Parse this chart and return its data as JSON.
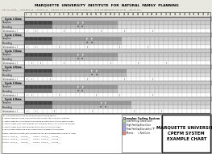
{
  "title": "MARQUETTE  UNIVERSITY  INSTITUTE  FOR  NATURAL  FAMILY  PLANNING",
  "subtitle": "LAST 12 CYCLES___  SHORTEST_23__  LONGEST_40__  EARLIEST DAY OF PEAK IN LAST 6 CYCLES_11__  DATE FOR BEGINNING THIS CHART___June 19, 200__",
  "col_headers": [
    "1",
    "2",
    "3",
    "4",
    "5",
    "6",
    "7",
    "8",
    "9",
    "10",
    "11",
    "12",
    "13",
    "14",
    "15",
    "16",
    "17",
    "18",
    "19",
    "20",
    "21",
    "22",
    "23",
    "24",
    "25",
    "26",
    "27",
    "28",
    "29",
    "30",
    "31",
    "32",
    "33",
    "34",
    "35",
    "36",
    "37",
    "38",
    "39",
    "40"
  ],
  "row_labels_left": [
    "Cycle 1 Date",
    "Charplan",
    "Recording",
    "Intercourse = I",
    "Cycle 2 Date",
    "Charplan",
    "Recording",
    "Intercourse = I",
    "Cycle 3 Date",
    "Charplan",
    "Recording",
    "Intercourse = I",
    "Cycle 4 Date",
    "Charplan",
    "Recording",
    "Intercourse = I",
    "Cycle 5 Date",
    "Charplan",
    "Recording",
    "Intercourse = I",
    "Cycle 6 Date",
    "Charplan",
    "Recording",
    "Intercourse = I"
  ],
  "cycles": [
    {
      "label": "Cycle 1 Date",
      "charplan_dark": [
        1,
        2,
        3,
        4,
        5,
        6
      ],
      "charplan_mid": [
        7,
        8,
        9,
        10,
        11,
        12,
        13,
        14,
        15,
        16,
        17,
        18,
        19,
        20
      ],
      "charplan_light": [
        21,
        22,
        23,
        24,
        25,
        26,
        27,
        28,
        29,
        30,
        31,
        32,
        33,
        34,
        35,
        36,
        37,
        38,
        39,
        40
      ],
      "peak_cols": [
        12,
        13
      ],
      "record_markers": [
        12,
        13
      ],
      "intercourse": [
        1,
        3,
        9,
        17,
        22,
        28
      ]
    },
    {
      "label": "Cycle 2 Date",
      "charplan_dark": [
        1,
        2,
        3,
        4,
        5,
        6
      ],
      "charplan_mid": [
        7,
        8,
        9,
        10,
        11,
        12,
        13,
        14,
        15,
        16,
        17,
        18,
        19,
        20,
        21
      ],
      "charplan_light": [
        22,
        23,
        24,
        25,
        26,
        27,
        28,
        29,
        30,
        31,
        32,
        33,
        34,
        35,
        36,
        37,
        38,
        39,
        40
      ],
      "peak_cols": [
        14,
        15
      ],
      "record_markers": [
        14,
        15
      ],
      "intercourse": [
        1,
        3,
        8,
        14,
        21,
        27
      ]
    },
    {
      "label": "Cycle 3 Date",
      "charplan_dark": [
        1,
        2,
        3,
        4,
        5,
        6
      ],
      "charplan_mid": [
        7,
        8,
        9,
        10,
        11,
        12,
        13,
        14,
        15,
        16,
        17,
        18,
        19,
        20
      ],
      "charplan_light": [
        21,
        22,
        23,
        24,
        25,
        26,
        27,
        28,
        29,
        30,
        31,
        32,
        33,
        34,
        35,
        36,
        37,
        38,
        39,
        40
      ],
      "peak_cols": [
        12,
        13
      ],
      "record_markers": [
        12,
        13
      ],
      "intercourse": [
        2,
        4,
        9,
        19,
        25,
        31
      ]
    },
    {
      "label": "Cycle 4 Date",
      "charplan_dark": [
        1,
        2,
        3,
        4,
        5,
        6
      ],
      "charplan_mid": [
        7,
        8,
        9,
        10,
        11,
        12,
        13,
        14,
        15,
        16,
        17,
        18,
        19,
        20,
        21,
        22
      ],
      "charplan_light": [
        23,
        24,
        25,
        26,
        27,
        28,
        29,
        30,
        31,
        32,
        33,
        34,
        35,
        36,
        37,
        38,
        39,
        40
      ],
      "peak_cols": [
        15,
        16
      ],
      "record_markers": [
        15,
        16
      ],
      "intercourse": [
        1,
        2,
        6,
        14,
        22,
        28
      ]
    },
    {
      "label": "Cycle 5 Date",
      "charplan_dark": [
        1,
        2,
        3,
        4,
        5,
        6
      ],
      "charplan_mid": [
        7,
        8,
        9,
        10,
        11,
        12,
        13,
        14,
        15,
        16,
        17,
        18,
        19,
        20
      ],
      "charplan_light": [
        21,
        22,
        23,
        24,
        25,
        26,
        27,
        28,
        29,
        30,
        31,
        32,
        33,
        34,
        35,
        36,
        37,
        38,
        39,
        40
      ],
      "peak_cols": [
        12,
        13
      ],
      "record_markers": [
        12,
        13
      ],
      "intercourse": [
        1,
        2,
        8,
        16,
        21,
        28
      ]
    },
    {
      "label": "Cycle 6 Date",
      "charplan_dark": [
        1,
        2,
        3,
        4,
        5,
        6
      ],
      "charplan_mid": [
        7,
        8,
        9,
        10,
        11,
        12,
        13,
        14,
        15,
        16,
        17,
        18,
        19,
        20,
        21,
        22,
        23
      ],
      "charplan_light": [
        24,
        25,
        26,
        27,
        28,
        29,
        30,
        31,
        32,
        33,
        34,
        35,
        36,
        37,
        38,
        39,
        40
      ],
      "peak_cols": [
        17,
        18
      ],
      "record_markers": [
        17,
        18
      ],
      "intercourse": [
        1,
        3,
        7,
        15,
        24,
        30
      ]
    }
  ],
  "avoidance_lines": [
    "Couple Intention Planning (must be done by your doctor before beginning each cycle)",
    "Cycle 1:  Avoid_x___  Achieve___      Cycle 2:  Avoid_x___  Achieve___",
    "Cycle 3:  Avoid_x___  Achieve___      Cycle 4:  Avoid_x___  Achieve___",
    "Cycle 5:  Avoid_x___  Achieve___      Cycle 6:  Avoid_x___  Achieve___"
  ],
  "footnotes": [
    "TO AVOID PREGNANCY: Do not have intercourse during fertility.",
    "1. Fertility BEGINS on day 1 during the first 6 cycles. After 6 cycles of charting",
    "2. Fertility BEGINS on the earliest day of Peak during the last 6 cycles minus 5 days.",
    "3. Fertility ENDS on the last Peak day plus THREE full days. After 6 cycles of charting",
    "4. Fertility ENDS on the last Peak day of the last 6 cycles plus 3 days.",
    "5. Do not have intercourse on any HIGH or PEAK reading on the monitor."
  ],
  "legend_title": "Charplan Coding System",
  "legend_items": [
    {
      "label": "Low Fertility",
      "color": "#aaddaa",
      "desc": "= Green Color"
    },
    {
      "label": "High Fertility",
      "color": "#aaaaee",
      "desc": "= Blue Color"
    },
    {
      "label": "Peak Fertility",
      "color": "#aaaaee",
      "desc": "= Blue with a \"P\""
    },
    {
      "label": "Menses",
      "color": "#ee8888",
      "desc": "= Red Color"
    }
  ],
  "box_title_lines": [
    "MARQUETTE UNIVERSITY",
    "CPEFM SYSTEM",
    "EXAMPLE CHART"
  ],
  "bg": "#e8e8e0",
  "white": "#ffffff",
  "dark": "#444444",
  "mid": "#999999",
  "light": "#cccccc",
  "grid_lw": 0.3,
  "border_lw": 0.6
}
